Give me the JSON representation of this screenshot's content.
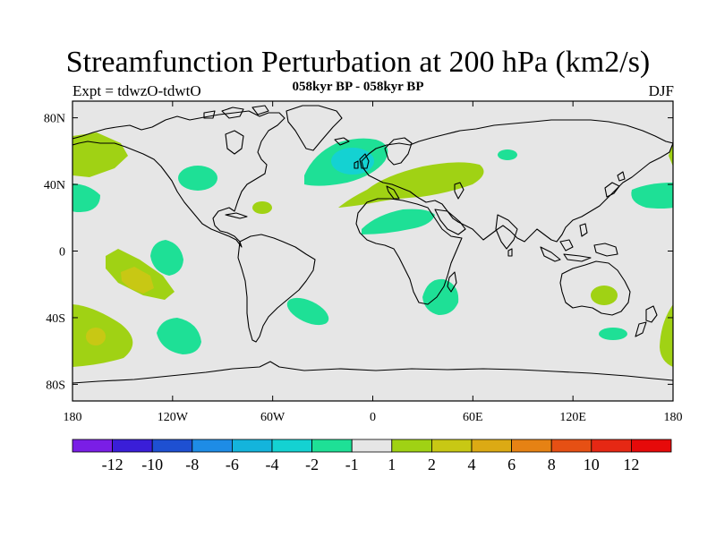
{
  "map": {
    "title": "Streamfunction Perturbation at 200 hPa (km2/s)",
    "subtitle": "058kyr BP - 058kyr BP",
    "left_label": "Expt = tdwzO-tdwtO",
    "right_label": "DJF",
    "x_ticks": [
      {
        "label": "180",
        "lon": -180
      },
      {
        "label": "120W",
        "lon": -120
      },
      {
        "label": "60W",
        "lon": -60
      },
      {
        "label": "0",
        "lon": 0
      },
      {
        "label": "60E",
        "lon": 60
      },
      {
        "label": "120E",
        "lon": 120
      },
      {
        "label": "180",
        "lon": 180
      }
    ],
    "y_ticks": [
      {
        "label": "80N",
        "lat": 80
      },
      {
        "label": "40N",
        "lat": 40
      },
      {
        "label": "0",
        "lat": 0
      },
      {
        "label": "40S",
        "lat": -40
      },
      {
        "label": "80S",
        "lat": -80
      }
    ],
    "lon_range": [
      -180,
      180
    ],
    "lat_range": [
      -90,
      90
    ],
    "land_color": "#e6e6e6"
  },
  "colorbar": {
    "labels": [
      "-12",
      "-10",
      "-8",
      "-6",
      "-4",
      "-2",
      "-1",
      "1",
      "2",
      "4",
      "6",
      "8",
      "10",
      "12"
    ],
    "colors": [
      "#7a1ee6",
      "#3a1ed8",
      "#1e50d2",
      "#1e8ce6",
      "#14b4dc",
      "#14d2d2",
      "#1ee096",
      "#e6e6e6",
      "#a0d214",
      "#c8c814",
      "#dcaa14",
      "#e68214",
      "#e65014",
      "#e62814",
      "#e60a0a"
    ]
  }
}
